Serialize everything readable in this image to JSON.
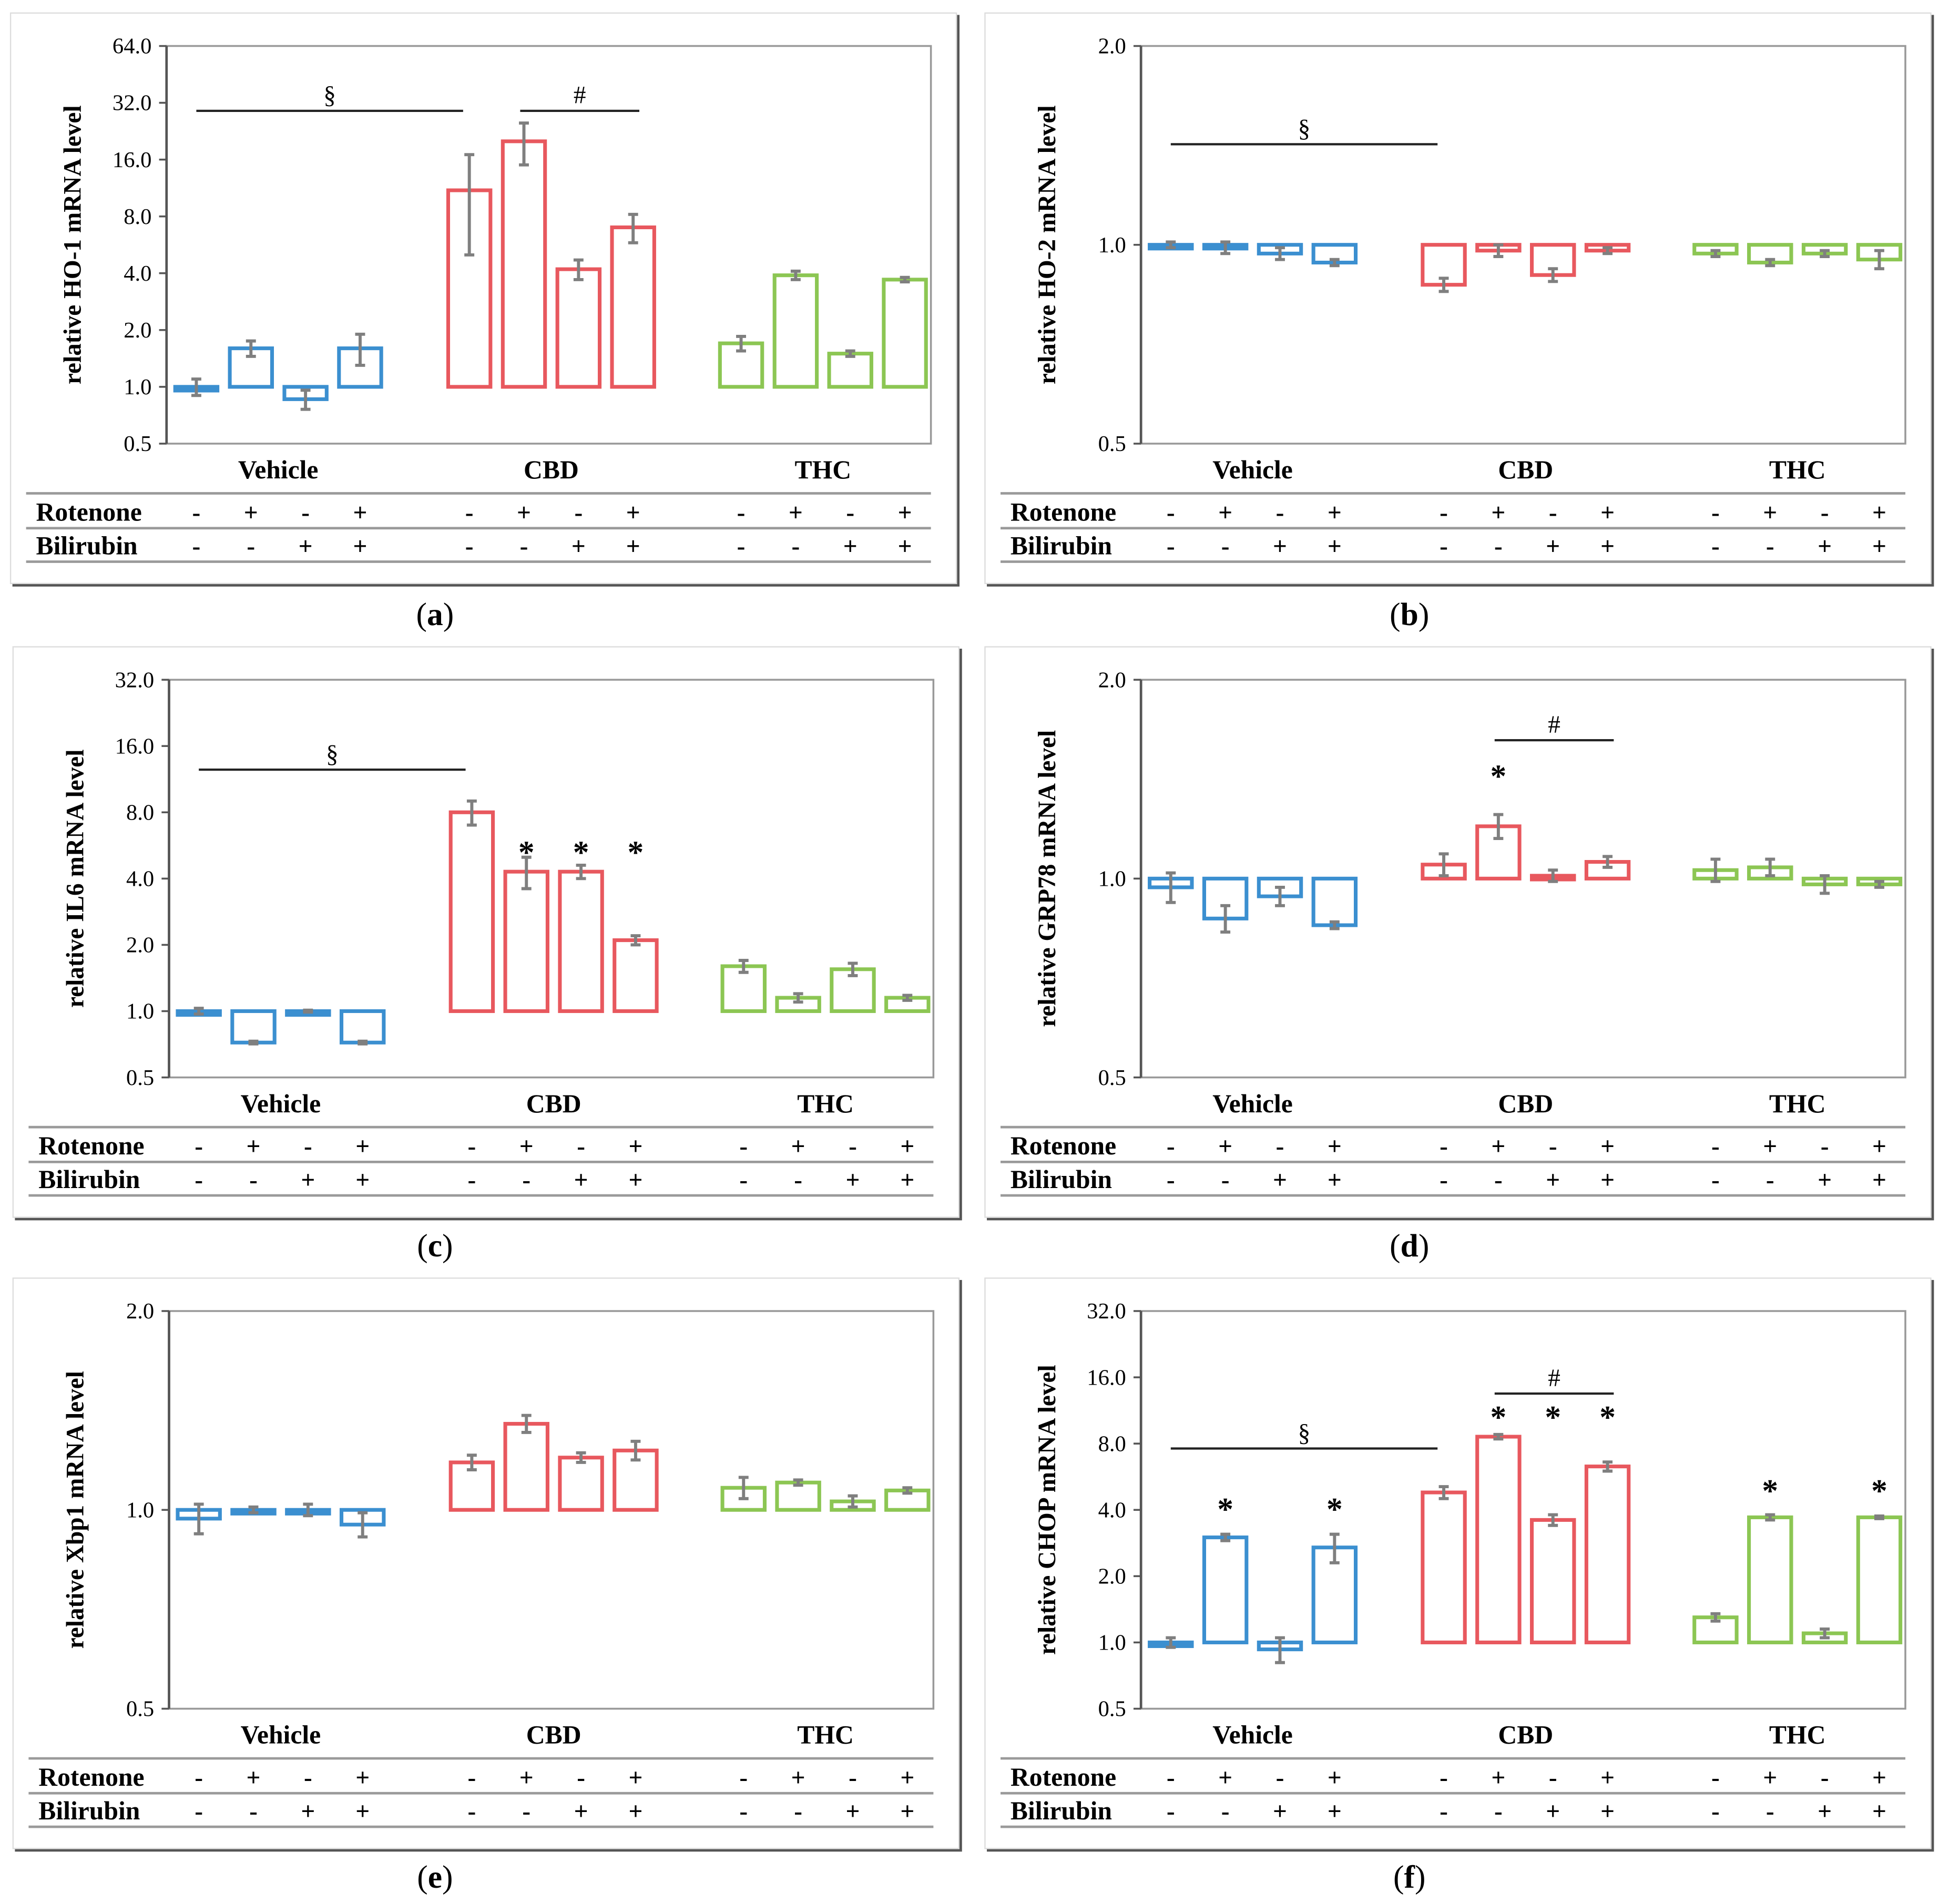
{
  "colors": {
    "Vehicle": "#3b8fd0",
    "CBD": "#e8585e",
    "THC": "#8cc653",
    "error": "#7f7f7f"
  },
  "table": {
    "row_labels": [
      "Rotenone",
      "Bilirubin"
    ],
    "rotenone": [
      "-",
      "+",
      "-",
      "+",
      "-",
      "+",
      "-",
      "+",
      "-",
      "+",
      "-",
      "+"
    ],
    "bilirubin": [
      "-",
      "-",
      "+",
      "+",
      "-",
      "-",
      "+",
      "+",
      "-",
      "-",
      "+",
      "+"
    ]
  },
  "captions": {
    "a": "a",
    "b": "b",
    "c": "c",
    "d": "d",
    "e": "e",
    "f": "f"
  },
  "chart_data": [
    {
      "id": "a",
      "type": "bar",
      "ylabel": "relative HO-1 mRNA level",
      "yscale": "log2",
      "ylim": [
        0.5,
        64
      ],
      "yticks": [
        "0.5",
        "1.0",
        "2.0",
        "4.0",
        "8.0",
        "16.0",
        "32.0",
        "64.0"
      ],
      "groups": [
        "Vehicle",
        "CBD",
        "THC"
      ],
      "values": [
        1.0,
        1.6,
        0.86,
        1.6,
        11,
        20,
        4.2,
        7.0,
        1.7,
        3.9,
        1.5,
        3.7
      ],
      "errors": [
        0.1,
        0.15,
        0.1,
        0.3,
        6,
        5,
        0.5,
        1.2,
        0.15,
        0.2,
        0.05,
        0.1
      ],
      "annotations": [
        {
          "text": "§",
          "from": 0,
          "to": 4,
          "level": 29
        },
        {
          "text": "#",
          "from": 5,
          "to": 7,
          "level": 29
        }
      ]
    },
    {
      "id": "b",
      "type": "bar",
      "ylabel": "relative HO-2 mRNA level",
      "yscale": "log2",
      "ylim": [
        0.5,
        2.0
      ],
      "yticks": [
        "0.5",
        "1.0",
        "2.0"
      ],
      "groups": [
        "Vehicle",
        "CBD",
        "THC"
      ],
      "values": [
        1.0,
        0.99,
        0.97,
        0.94,
        0.87,
        0.98,
        0.9,
        0.98,
        0.97,
        0.94,
        0.97,
        0.95
      ],
      "errors": [
        0.01,
        0.02,
        0.02,
        0.01,
        0.02,
        0.02,
        0.02,
        0.01,
        0.01,
        0.01,
        0.01,
        0.03
      ],
      "annotations": [
        {
          "text": "§",
          "from": 0,
          "to": 4,
          "level": 1.42
        }
      ]
    },
    {
      "id": "c",
      "type": "bar",
      "ylabel": "relative IL6 mRNA level",
      "yscale": "log2",
      "ylim": [
        0.5,
        32
      ],
      "yticks": [
        "0.5",
        "1.0",
        "2.0",
        "4.0",
        "8.0",
        "16.0",
        "32.0"
      ],
      "groups": [
        "Vehicle",
        "CBD",
        "THC"
      ],
      "values": [
        1.0,
        0.72,
        1.0,
        0.72,
        8.0,
        4.3,
        4.3,
        2.1,
        1.6,
        1.15,
        1.55,
        1.15
      ],
      "errors": [
        0.03,
        0.01,
        0.01,
        0.01,
        1.0,
        0.7,
        0.3,
        0.1,
        0.1,
        0.05,
        0.1,
        0.03
      ],
      "annotations": [
        {
          "text": "§",
          "from": 0,
          "to": 4,
          "level": 12.5
        },
        {
          "text": "*",
          "from": 5,
          "to": 5,
          "level": 5.5
        },
        {
          "text": "*",
          "from": 6,
          "to": 6,
          "level": 5.5
        },
        {
          "text": "*",
          "from": 7,
          "to": 7,
          "level": 5.5
        }
      ]
    },
    {
      "id": "d",
      "type": "bar",
      "ylabel": "relative GRP78 mRNA level",
      "yscale": "log2",
      "ylim": [
        0.5,
        2.0
      ],
      "yticks": [
        "0.5",
        "1.0",
        "2.0"
      ],
      "groups": [
        "Vehicle",
        "CBD",
        "THC"
      ],
      "values": [
        0.97,
        0.87,
        0.94,
        0.85,
        1.05,
        1.2,
        1.01,
        1.06,
        1.03,
        1.04,
        0.98,
        0.98
      ],
      "errors": [
        0.05,
        0.04,
        0.03,
        0.01,
        0.04,
        0.05,
        0.02,
        0.02,
        0.04,
        0.03,
        0.03,
        0.01
      ],
      "annotations": [
        {
          "text": "#",
          "from": 5,
          "to": 7,
          "level": 1.62
        },
        {
          "text": "*",
          "from": 5,
          "to": 5,
          "level": 1.45
        }
      ]
    },
    {
      "id": "e",
      "type": "bar",
      "ylabel": "relative Xbp1 mRNA level",
      "yscale": "log2",
      "ylim": [
        0.5,
        2.0
      ],
      "yticks": [
        "0.5",
        "1.0",
        "2.0"
      ],
      "groups": [
        "Vehicle",
        "CBD",
        "THC"
      ],
      "values": [
        0.97,
        1.0,
        1.0,
        0.95,
        1.18,
        1.35,
        1.2,
        1.23,
        1.08,
        1.1,
        1.03,
        1.07
      ],
      "errors": [
        0.05,
        0.01,
        0.02,
        0.04,
        0.03,
        0.04,
        0.02,
        0.04,
        0.04,
        0.01,
        0.02,
        0.01
      ],
      "annotations": []
    },
    {
      "id": "f",
      "type": "bar",
      "ylabel": "relative CHOP mRNA level",
      "yscale": "log2",
      "ylim": [
        0.5,
        32
      ],
      "yticks": [
        "0.5",
        "1.0",
        "2.0",
        "4.0",
        "8.0",
        "16.0",
        "32.0"
      ],
      "groups": [
        "Vehicle",
        "CBD",
        "THC"
      ],
      "values": [
        1.0,
        3.0,
        0.93,
        2.7,
        4.8,
        8.6,
        3.6,
        6.3,
        1.3,
        3.7,
        1.1,
        3.7
      ],
      "errors": [
        0.05,
        0.1,
        0.12,
        0.4,
        0.3,
        0.2,
        0.2,
        0.3,
        0.05,
        0.1,
        0.05,
        0.05
      ],
      "annotations": [
        {
          "text": "§",
          "from": 0,
          "to": 4,
          "level": 7.6
        },
        {
          "text": "#",
          "from": 5,
          "to": 7,
          "level": 13.5
        },
        {
          "text": "*",
          "from": 1,
          "to": 1,
          "level": 4.2
        },
        {
          "text": "*",
          "from": 3,
          "to": 3,
          "level": 4.2
        },
        {
          "text": "*",
          "from": 5,
          "to": 5,
          "level": 11
        },
        {
          "text": "*",
          "from": 6,
          "to": 6,
          "level": 11
        },
        {
          "text": "*",
          "from": 7,
          "to": 7,
          "level": 11
        },
        {
          "text": "*",
          "from": 9,
          "to": 9,
          "level": 5.1
        },
        {
          "text": "*",
          "from": 11,
          "to": 11,
          "level": 5.1
        }
      ]
    }
  ]
}
